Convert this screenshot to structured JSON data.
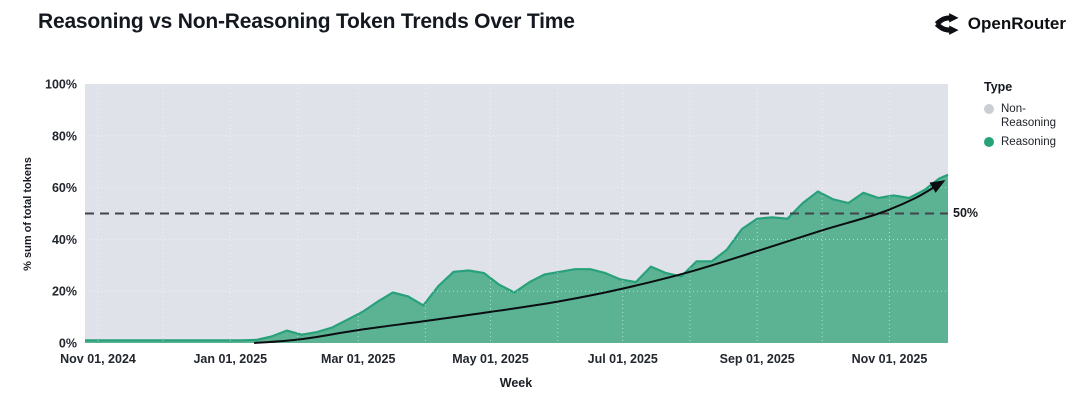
{
  "header": {
    "title": "Reasoning vs Non-Reasoning Token Trends Over Time",
    "brand": "OpenRouter"
  },
  "legend": {
    "title": "Type",
    "items": [
      {
        "label": "Non-Reasoning",
        "color": "#cbcdd4"
      },
      {
        "label": "Reasoning",
        "color": "#27a27b"
      }
    ]
  },
  "chart_data": {
    "type": "area",
    "title": "Reasoning vs Non-Reasoning Token Trends Over Time",
    "xlabel": "Week",
    "ylabel": "% sum of total tokens",
    "ylim": [
      0,
      100
    ],
    "grid": true,
    "legend_position": "right",
    "colors": {
      "plot_background": "#dfe2e9",
      "area_fill": "#5bb394",
      "area_stroke": "#28a17b",
      "gridline": "rgba(255,255,255,0.55)",
      "reference_line": "#40454c",
      "trend_line": "#0b0d10",
      "tick_text": "#22272e"
    },
    "y_ticks": [
      {
        "value": 0,
        "label": "0%"
      },
      {
        "value": 20,
        "label": "20%"
      },
      {
        "value": 40,
        "label": "40%"
      },
      {
        "value": 60,
        "label": "60%"
      },
      {
        "value": 80,
        "label": "80%"
      },
      {
        "value": 100,
        "label": "100%"
      }
    ],
    "x_domain": [
      "2024-10-26",
      "2025-11-28"
    ],
    "x_ticks": [
      {
        "date": "2024-11-01",
        "label": "Nov 01, 2024"
      },
      {
        "date": "2025-01-01",
        "label": "Jan 01, 2025"
      },
      {
        "date": "2025-03-01",
        "label": "Mar 01, 2025"
      },
      {
        "date": "2025-05-01",
        "label": "May 01, 2025"
      },
      {
        "date": "2025-07-01",
        "label": "Jul 01, 2025"
      },
      {
        "date": "2025-09-01",
        "label": "Sep 01, 2025"
      },
      {
        "date": "2025-11-01",
        "label": "Nov 01, 2025"
      }
    ],
    "x_grid_dates": [
      "2024-11-01",
      "2024-12-01",
      "2025-01-01",
      "2025-02-01",
      "2025-03-01",
      "2025-04-01",
      "2025-05-01",
      "2025-06-01",
      "2025-07-01",
      "2025-08-01",
      "2025-09-01",
      "2025-10-01",
      "2025-11-01"
    ],
    "reference_line": {
      "value": 50,
      "label": "50%",
      "style": "dashed"
    },
    "series": [
      {
        "name": "Reasoning",
        "points": [
          [
            "2024-10-26",
            1
          ],
          [
            "2024-10-28",
            1
          ],
          [
            "2024-11-04",
            1
          ],
          [
            "2024-11-11",
            1
          ],
          [
            "2024-11-18",
            1
          ],
          [
            "2024-11-25",
            1
          ],
          [
            "2024-12-02",
            1
          ],
          [
            "2024-12-09",
            1
          ],
          [
            "2024-12-16",
            1
          ],
          [
            "2024-12-23",
            1
          ],
          [
            "2024-12-30",
            1
          ],
          [
            "2025-01-06",
            1
          ],
          [
            "2025-01-13",
            1.2
          ],
          [
            "2025-01-20",
            2.5
          ],
          [
            "2025-01-27",
            4.8
          ],
          [
            "2025-02-03",
            3.2
          ],
          [
            "2025-02-10",
            4.2
          ],
          [
            "2025-02-17",
            6
          ],
          [
            "2025-02-24",
            9
          ],
          [
            "2025-03-03",
            12
          ],
          [
            "2025-03-10",
            16
          ],
          [
            "2025-03-17",
            19.5
          ],
          [
            "2025-03-24",
            18
          ],
          [
            "2025-03-31",
            14.5
          ],
          [
            "2025-04-07",
            22
          ],
          [
            "2025-04-14",
            27.5
          ],
          [
            "2025-04-21",
            28
          ],
          [
            "2025-04-28",
            27
          ],
          [
            "2025-05-05",
            22.5
          ],
          [
            "2025-05-12",
            19.5
          ],
          [
            "2025-05-19",
            23.5
          ],
          [
            "2025-05-26",
            26.5
          ],
          [
            "2025-06-02",
            27.5
          ],
          [
            "2025-06-09",
            28.5
          ],
          [
            "2025-06-16",
            28.5
          ],
          [
            "2025-06-23",
            27
          ],
          [
            "2025-06-30",
            24.5
          ],
          [
            "2025-07-07",
            23.5
          ],
          [
            "2025-07-14",
            29.5
          ],
          [
            "2025-07-21",
            27
          ],
          [
            "2025-07-28",
            25.7
          ],
          [
            "2025-08-04",
            31.5
          ],
          [
            "2025-08-11",
            31.5
          ],
          [
            "2025-08-18",
            36
          ],
          [
            "2025-08-25",
            44
          ],
          [
            "2025-09-01",
            48
          ],
          [
            "2025-09-08",
            48.5
          ],
          [
            "2025-09-15",
            48
          ],
          [
            "2025-09-22",
            54
          ],
          [
            "2025-09-29",
            58.5
          ],
          [
            "2025-10-06",
            55.5
          ],
          [
            "2025-10-13",
            54
          ],
          [
            "2025-10-20",
            58
          ],
          [
            "2025-10-27",
            56
          ],
          [
            "2025-11-03",
            57
          ],
          [
            "2025-11-10",
            56
          ],
          [
            "2025-11-17",
            59
          ],
          [
            "2025-11-24",
            63.5
          ],
          [
            "2025-11-28",
            65
          ]
        ]
      },
      {
        "name": "Non-Reasoning",
        "note": "remainder to 100% (background region)"
      }
    ],
    "trend_line": {
      "arrow": true,
      "points": [
        [
          "2025-01-12",
          0
        ],
        [
          "2025-02-03",
          1.5
        ],
        [
          "2025-03-01",
          5
        ],
        [
          "2025-04-01",
          8.5
        ],
        [
          "2025-05-01",
          12
        ],
        [
          "2025-06-01",
          16
        ],
        [
          "2025-07-01",
          21
        ],
        [
          "2025-08-01",
          27.5
        ],
        [
          "2025-09-01",
          35.5
        ],
        [
          "2025-10-01",
          43.5
        ],
        [
          "2025-10-27",
          50
        ],
        [
          "2025-11-13",
          56
        ],
        [
          "2025-11-26",
          62.5
        ]
      ]
    }
  }
}
